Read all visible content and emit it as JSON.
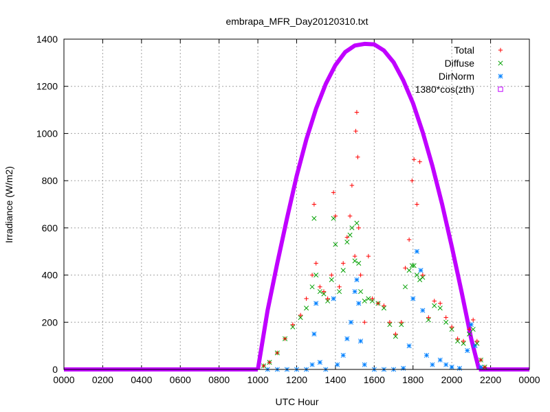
{
  "chart_data": {
    "type": "scatter",
    "title": "embrapa_MFR_Day20120310.txt",
    "xlabel": "UTC Hour",
    "ylabel": "Irradiance (W/m2)",
    "xlim": [
      0,
      24
    ],
    "ylim": [
      0,
      1400
    ],
    "x_ticks": [
      {
        "value": 0,
        "label": "0000"
      },
      {
        "value": 2,
        "label": "0200"
      },
      {
        "value": 4,
        "label": "0400"
      },
      {
        "value": 6,
        "label": "0600"
      },
      {
        "value": 8,
        "label": "0800"
      },
      {
        "value": 10,
        "label": "1000"
      },
      {
        "value": 12,
        "label": "1200"
      },
      {
        "value": 14,
        "label": "1400"
      },
      {
        "value": 16,
        "label": "1600"
      },
      {
        "value": 18,
        "label": "1800"
      },
      {
        "value": 20,
        "label": "2000"
      },
      {
        "value": 22,
        "label": "2200"
      },
      {
        "value": 24,
        "label": "0000"
      }
    ],
    "y_ticks": [
      0,
      200,
      400,
      600,
      800,
      1000,
      1200,
      1400
    ],
    "grid": true,
    "legend_position": "top-right",
    "colors": {
      "Total": "#ff0000",
      "Diffuse": "#00a000",
      "DirNorm": "#0080ff",
      "1380*cos(zth)": "#c000ff"
    },
    "series": [
      {
        "name": "Total",
        "marker": "plus",
        "points": [
          [
            10.3,
            15
          ],
          [
            10.6,
            30
          ],
          [
            11.0,
            70
          ],
          [
            11.4,
            130
          ],
          [
            11.8,
            190
          ],
          [
            12.2,
            230
          ],
          [
            12.5,
            300
          ],
          [
            12.8,
            400
          ],
          [
            12.9,
            700
          ],
          [
            13.0,
            450
          ],
          [
            13.2,
            350
          ],
          [
            13.4,
            330
          ],
          [
            13.6,
            300
          ],
          [
            13.8,
            400
          ],
          [
            13.9,
            750
          ],
          [
            14.0,
            650
          ],
          [
            14.2,
            350
          ],
          [
            14.4,
            450
          ],
          [
            14.6,
            560
          ],
          [
            14.75,
            650
          ],
          [
            14.85,
            780
          ],
          [
            15.0,
            480
          ],
          [
            15.05,
            1010
          ],
          [
            15.1,
            1090
          ],
          [
            15.15,
            900
          ],
          [
            15.2,
            600
          ],
          [
            15.3,
            400
          ],
          [
            15.5,
            200
          ],
          [
            15.7,
            480
          ],
          [
            15.9,
            300
          ],
          [
            16.2,
            280
          ],
          [
            16.5,
            270
          ],
          [
            16.8,
            200
          ],
          [
            17.1,
            150
          ],
          [
            17.4,
            200
          ],
          [
            17.6,
            430
          ],
          [
            17.8,
            550
          ],
          [
            17.95,
            800
          ],
          [
            18.05,
            890
          ],
          [
            18.2,
            700
          ],
          [
            18.35,
            880
          ],
          [
            18.5,
            400
          ],
          [
            18.8,
            220
          ],
          [
            19.1,
            290
          ],
          [
            19.4,
            280
          ],
          [
            19.7,
            220
          ],
          [
            20.0,
            180
          ],
          [
            20.3,
            130
          ],
          [
            20.6,
            120
          ],
          [
            20.9,
            170
          ],
          [
            21.1,
            210
          ],
          [
            21.3,
            120
          ],
          [
            21.5,
            40
          ],
          [
            21.7,
            10
          ]
        ]
      },
      {
        "name": "Diffuse",
        "marker": "cross",
        "points": [
          [
            10.3,
            15
          ],
          [
            10.6,
            30
          ],
          [
            11.0,
            70
          ],
          [
            11.4,
            130
          ],
          [
            11.8,
            180
          ],
          [
            12.2,
            220
          ],
          [
            12.5,
            260
          ],
          [
            12.8,
            350
          ],
          [
            12.9,
            640
          ],
          [
            13.0,
            400
          ],
          [
            13.2,
            330
          ],
          [
            13.4,
            320
          ],
          [
            13.6,
            290
          ],
          [
            13.8,
            380
          ],
          [
            13.9,
            640
          ],
          [
            14.0,
            530
          ],
          [
            14.2,
            330
          ],
          [
            14.4,
            420
          ],
          [
            14.6,
            540
          ],
          [
            14.75,
            570
          ],
          [
            14.85,
            600
          ],
          [
            15.0,
            460
          ],
          [
            15.1,
            620
          ],
          [
            15.2,
            450
          ],
          [
            15.3,
            330
          ],
          [
            15.5,
            290
          ],
          [
            15.7,
            300
          ],
          [
            15.9,
            290
          ],
          [
            16.2,
            280
          ],
          [
            16.5,
            260
          ],
          [
            16.8,
            190
          ],
          [
            17.1,
            140
          ],
          [
            17.4,
            190
          ],
          [
            17.6,
            350
          ],
          [
            17.8,
            420
          ],
          [
            17.95,
            440
          ],
          [
            18.05,
            440
          ],
          [
            18.2,
            400
          ],
          [
            18.35,
            380
          ],
          [
            18.5,
            390
          ],
          [
            18.8,
            210
          ],
          [
            19.1,
            270
          ],
          [
            19.4,
            260
          ],
          [
            19.7,
            200
          ],
          [
            20.0,
            170
          ],
          [
            20.3,
            120
          ],
          [
            20.6,
            110
          ],
          [
            20.9,
            150
          ],
          [
            21.1,
            170
          ],
          [
            21.3,
            110
          ],
          [
            21.5,
            40
          ],
          [
            21.7,
            10
          ]
        ]
      },
      {
        "name": "DirNorm",
        "marker": "star",
        "points": [
          [
            10.5,
            0
          ],
          [
            11.0,
            0
          ],
          [
            11.5,
            0
          ],
          [
            12.0,
            0
          ],
          [
            12.5,
            0
          ],
          [
            12.8,
            20
          ],
          [
            12.9,
            150
          ],
          [
            13.0,
            280
          ],
          [
            13.2,
            30
          ],
          [
            13.5,
            0
          ],
          [
            13.9,
            300
          ],
          [
            14.1,
            20
          ],
          [
            14.4,
            60
          ],
          [
            14.6,
            130
          ],
          [
            14.8,
            200
          ],
          [
            15.0,
            330
          ],
          [
            15.1,
            380
          ],
          [
            15.2,
            280
          ],
          [
            15.3,
            120
          ],
          [
            15.5,
            20
          ],
          [
            16.0,
            0
          ],
          [
            16.5,
            0
          ],
          [
            17.0,
            0
          ],
          [
            17.5,
            5
          ],
          [
            17.8,
            100
          ],
          [
            18.0,
            300
          ],
          [
            18.2,
            500
          ],
          [
            18.4,
            420
          ],
          [
            18.5,
            250
          ],
          [
            18.7,
            60
          ],
          [
            19.0,
            20
          ],
          [
            19.4,
            40
          ],
          [
            19.7,
            20
          ],
          [
            20.0,
            10
          ],
          [
            20.4,
            5
          ],
          [
            20.8,
            80
          ],
          [
            21.0,
            190
          ],
          [
            21.2,
            100
          ],
          [
            21.5,
            10
          ]
        ]
      },
      {
        "name": "1380*cos(zth)",
        "marker": "square",
        "amplitude": 1380,
        "night_value": 0,
        "curve": [
          [
            10.0,
            0
          ],
          [
            10.5,
            250
          ],
          [
            11.0,
            450
          ],
          [
            11.5,
            640
          ],
          [
            12.0,
            820
          ],
          [
            12.5,
            975
          ],
          [
            13.0,
            1105
          ],
          [
            13.5,
            1210
          ],
          [
            14.0,
            1290
          ],
          [
            14.5,
            1345
          ],
          [
            15.0,
            1373
          ],
          [
            15.5,
            1380
          ],
          [
            16.0,
            1378
          ],
          [
            16.5,
            1352
          ],
          [
            17.0,
            1302
          ],
          [
            17.5,
            1225
          ],
          [
            18.0,
            1128
          ],
          [
            18.5,
            1005
          ],
          [
            19.0,
            862
          ],
          [
            19.5,
            700
          ],
          [
            20.0,
            520
          ],
          [
            20.5,
            330
          ],
          [
            21.0,
            130
          ],
          [
            21.4,
            0
          ]
        ]
      }
    ]
  }
}
